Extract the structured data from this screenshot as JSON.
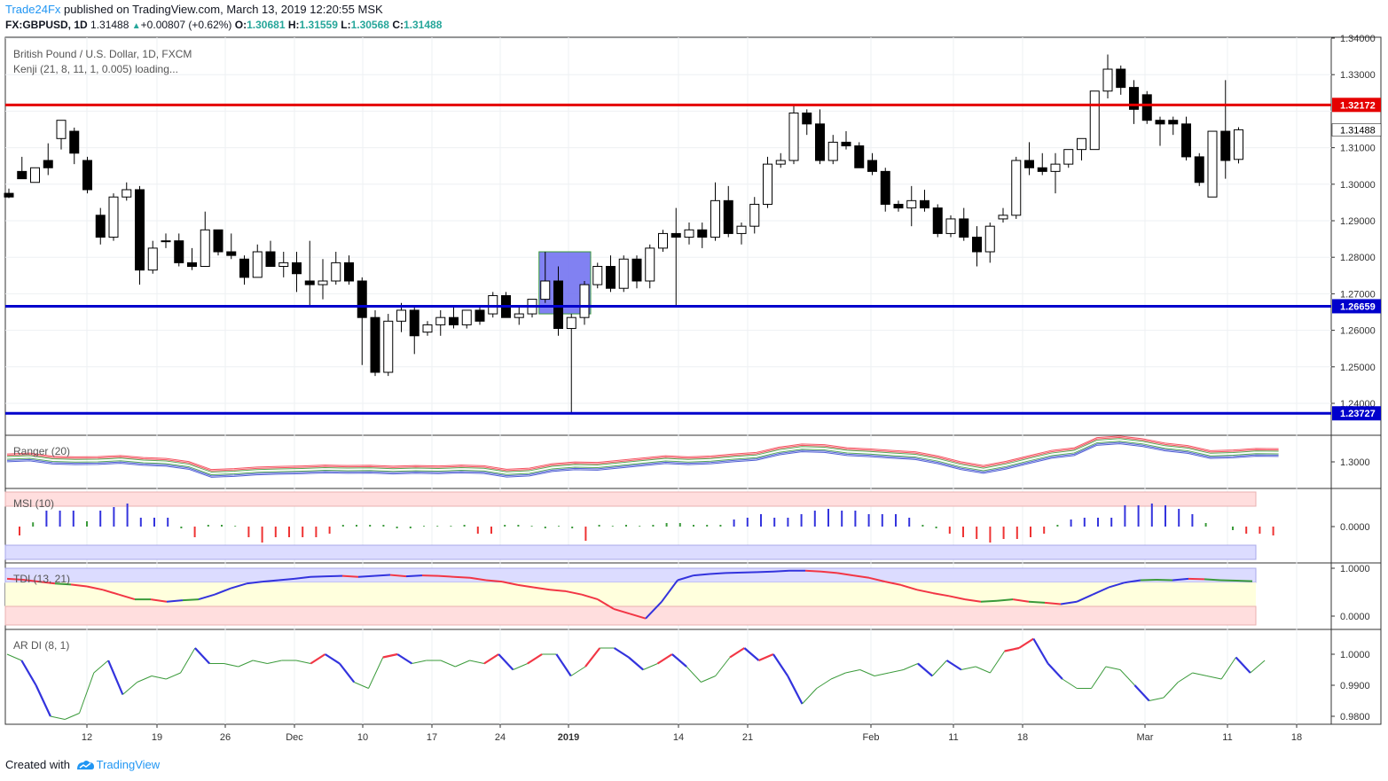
{
  "header": {
    "brand": "Trade24Fx",
    "published": " published on TradingView.com, March 13, 2019 12:20:55 MSK",
    "symbol": "FX:GBPUSD, 1D",
    "last": "1.31488",
    "change": "+0.00807 (+0.62%)",
    "o_label": "O:",
    "o_value": "1.30681",
    "h_label": "H:",
    "h_value": "1.31559",
    "l_label": "L:",
    "l_value": "1.30568",
    "c_label": "C:",
    "c_value": "1.31488"
  },
  "footer": {
    "created": "Created with",
    "brand": "TradingView"
  },
  "colors": {
    "up_fill": "#ffffff",
    "down_fill": "#000000",
    "red_line": "#e50000",
    "blue_line": "#0000cc",
    "ranger_red": "#f23645",
    "ranger_blue": "#3344cc",
    "msi_up": "#3333dd",
    "msi_dn": "#ee3333",
    "green": "#3a9a3a",
    "zone_pink": "#ffdede",
    "zone_blue": "#dcdcff",
    "zone_yellow": "#ffffdd"
  },
  "chart_data": [
    {
      "type": "candlestick",
      "title": "British Pound / U.S. Dollar, 1D, FXCM",
      "subtitle": "Kenji (21, 8, 11, 1, 0.005) loading...",
      "ylim": [
        1.2345,
        1.3425
      ],
      "yticks": [
        "1.34000",
        "1.33000",
        "1.32172",
        "1.31488",
        "1.31000",
        "1.30000",
        "1.29000",
        "1.28000",
        "1.27000",
        "1.26659",
        "1.26000",
        "1.25000",
        "1.24000",
        "1.23727"
      ],
      "xtick_labels": [
        "12",
        "19",
        "26",
        "Dec",
        "10",
        "17",
        "24",
        "2019",
        "14",
        "21",
        "Feb",
        "11",
        "18",
        "Mar",
        "11",
        "18"
      ],
      "horizontal_lines": [
        {
          "value": 1.32172,
          "label": "1.32172",
          "color": "red"
        },
        {
          "value": 1.26659,
          "label": "1.26659",
          "color": "blue"
        },
        {
          "value": 1.23727,
          "label": "1.23727",
          "color": "blue"
        }
      ],
      "highlight_box": {
        "from_index": 41,
        "to_index": 44,
        "top": 1.2815,
        "bottom": 1.2645
      },
      "candles": [
        [
          1.2975,
          1.2988,
          1.2965,
          1.2962
        ],
        [
          1.3035,
          1.3075,
          1.3015,
          1.3015
        ],
        [
          1.3005,
          1.3035,
          1.3045,
          1.3055
        ],
        [
          1.3065,
          1.3112,
          1.3045,
          1.3025
        ],
        [
          1.3125,
          1.3155,
          1.3175,
          1.3095
        ],
        [
          1.3145,
          1.3155,
          1.3085,
          1.3055
        ],
        [
          1.3065,
          1.3075,
          1.2985,
          1.2975
        ],
        [
          1.2915,
          1.2935,
          1.2855,
          1.2835
        ],
        [
          1.2855,
          1.2975,
          1.2965,
          1.2845
        ],
        [
          1.2965,
          1.3005,
          1.2985,
          1.2955
        ],
        [
          1.2985,
          1.2995,
          1.2765,
          1.2725
        ],
        [
          1.2765,
          1.2845,
          1.2825,
          1.2755
        ],
        [
          1.2845,
          1.2865,
          1.2845,
          1.2825
        ],
        [
          1.2845,
          1.2865,
          1.2785,
          1.2775
        ],
        [
          1.2785,
          1.2825,
          1.2775,
          1.2765
        ],
        [
          1.2775,
          1.2925,
          1.2875,
          1.2775
        ],
        [
          1.2875,
          1.2875,
          1.2815,
          1.2805
        ],
        [
          1.2815,
          1.2865,
          1.2805,
          1.2795
        ],
        [
          1.2795,
          1.2805,
          1.2745,
          1.2725
        ],
        [
          1.2745,
          1.2835,
          1.2815,
          1.2745
        ],
        [
          1.2815,
          1.2845,
          1.2775,
          1.2775
        ],
        [
          1.2775,
          1.2815,
          1.2785,
          1.2745
        ],
        [
          1.2785,
          1.2815,
          1.2755,
          1.2705
        ],
        [
          1.2735,
          1.2845,
          1.2725,
          1.2665
        ],
        [
          1.2725,
          1.2795,
          1.2735,
          1.2685
        ],
        [
          1.2735,
          1.2815,
          1.2785,
          1.2725
        ],
        [
          1.2785,
          1.2805,
          1.2735,
          1.2725
        ],
        [
          1.2735,
          1.2745,
          1.2635,
          1.2505
        ],
        [
          1.2635,
          1.2655,
          1.2485,
          1.2475
        ],
        [
          1.2485,
          1.2645,
          1.2625,
          1.2475
        ],
        [
          1.2625,
          1.2675,
          1.2655,
          1.2595
        ],
        [
          1.2655,
          1.2665,
          1.2585,
          1.2535
        ],
        [
          1.2595,
          1.2625,
          1.2615,
          1.2585
        ],
        [
          1.2615,
          1.2655,
          1.2635,
          1.2585
        ],
        [
          1.2635,
          1.2665,
          1.2615,
          1.2605
        ],
        [
          1.2615,
          1.2655,
          1.2655,
          1.2605
        ],
        [
          1.2655,
          1.2665,
          1.2625,
          1.2615
        ],
        [
          1.2645,
          1.2705,
          1.2695,
          1.2635
        ],
        [
          1.2695,
          1.2705,
          1.2635,
          1.2635
        ],
        [
          1.2635,
          1.2665,
          1.2645,
          1.2615
        ],
        [
          1.2645,
          1.2675,
          1.2685,
          1.2635
        ],
        [
          1.2685,
          1.2815,
          1.2735,
          1.2675
        ],
        [
          1.2735,
          1.2775,
          1.2605,
          1.2585
        ],
        [
          1.2605,
          1.2645,
          1.2635,
          1.2375
        ],
        [
          1.2635,
          1.2735,
          1.2725,
          1.2615
        ],
        [
          1.2725,
          1.2785,
          1.2775,
          1.2715
        ],
        [
          1.2775,
          1.2805,
          1.2715,
          1.2705
        ],
        [
          1.2715,
          1.2805,
          1.2795,
          1.2705
        ],
        [
          1.2795,
          1.2805,
          1.2735,
          1.2715
        ],
        [
          1.2735,
          1.2835,
          1.2825,
          1.2715
        ],
        [
          1.2825,
          1.2875,
          1.2865,
          1.2815
        ],
        [
          1.2865,
          1.2935,
          1.2855,
          1.2665
        ],
        [
          1.2855,
          1.2895,
          1.2875,
          1.2835
        ],
        [
          1.2875,
          1.2895,
          1.2855,
          1.2825
        ],
        [
          1.2855,
          1.3005,
          1.2955,
          1.2845
        ],
        [
          1.2955,
          1.2995,
          1.2865,
          1.2855
        ],
        [
          1.2865,
          1.2895,
          1.2885,
          1.2835
        ],
        [
          1.2885,
          1.2965,
          1.2945,
          1.2865
        ],
        [
          1.2945,
          1.3075,
          1.3055,
          1.2935
        ],
        [
          1.3055,
          1.3085,
          1.3065,
          1.3045
        ],
        [
          1.3065,
          1.3215,
          1.3195,
          1.3055
        ],
        [
          1.3195,
          1.3205,
          1.3165,
          1.3135
        ],
        [
          1.3165,
          1.3205,
          1.3065,
          1.3055
        ],
        [
          1.3065,
          1.3135,
          1.3115,
          1.3055
        ],
        [
          1.3115,
          1.3145,
          1.3105,
          1.3095
        ],
        [
          1.3105,
          1.3115,
          1.3045,
          1.3055
        ],
        [
          1.3065,
          1.3085,
          1.3035,
          1.3025
        ],
        [
          1.3035,
          1.3045,
          1.2945,
          1.2925
        ],
        [
          1.2945,
          1.2955,
          1.2935,
          1.2925
        ],
        [
          1.2935,
          1.2995,
          1.2955,
          1.2885
        ],
        [
          1.2955,
          1.2985,
          1.2935,
          1.2925
        ],
        [
          1.2935,
          1.2945,
          1.2865,
          1.2855
        ],
        [
          1.2865,
          1.2915,
          1.2905,
          1.2855
        ],
        [
          1.2905,
          1.2935,
          1.2855,
          1.2845
        ],
        [
          1.2855,
          1.2885,
          1.2815,
          1.2775
        ],
        [
          1.2815,
          1.2895,
          1.2885,
          1.2785
        ],
        [
          1.2905,
          1.2935,
          1.2915,
          1.2895
        ],
        [
          1.2915,
          1.3075,
          1.3065,
          1.2905
        ],
        [
          1.3065,
          1.3115,
          1.3045,
          1.3025
        ],
        [
          1.3045,
          1.3085,
          1.3035,
          1.3025
        ],
        [
          1.3035,
          1.3085,
          1.3055,
          1.2975
        ],
        [
          1.3055,
          1.3095,
          1.3095,
          1.3045
        ],
        [
          1.3095,
          1.3125,
          1.3125,
          1.3065
        ],
        [
          1.3095,
          1.3255,
          1.3255,
          1.3095
        ],
        [
          1.3255,
          1.3355,
          1.3315,
          1.3235
        ],
        [
          1.3315,
          1.3325,
          1.3265,
          1.3245
        ],
        [
          1.3265,
          1.3285,
          1.3205,
          1.3165
        ],
        [
          1.3245,
          1.3255,
          1.3175,
          1.3165
        ],
        [
          1.3175,
          1.3185,
          1.3165,
          1.3105
        ],
        [
          1.3175,
          1.3185,
          1.3165,
          1.3135
        ],
        [
          1.3165,
          1.3185,
          1.3075,
          1.3065
        ],
        [
          1.3075,
          1.3085,
          1.3005,
          1.2995
        ],
        [
          1.2965,
          1.3145,
          1.3145,
          1.2965
        ],
        [
          1.3145,
          1.3285,
          1.3065,
          1.3015
        ],
        [
          1.3068,
          1.3156,
          1.3149,
          1.3057
        ]
      ]
    },
    {
      "type": "line",
      "title": "Ranger (20)",
      "ylim": [
        1.288,
        1.312
      ],
      "yticks": [
        "1.3000"
      ],
      "mid": [
        1.3018,
        1.3022,
        1.3008,
        1.3005,
        1.3006,
        1.3011,
        1.3002,
        1.2998,
        1.2984,
        1.2948,
        1.2952,
        1.2959,
        1.2962,
        1.2964,
        1.2968,
        1.2966,
        1.2967,
        1.2963,
        1.2966,
        1.2964,
        1.2968,
        1.2965,
        1.2949,
        1.2954,
        1.2974,
        1.2982,
        1.298,
        1.299,
        1.3,
        1.301,
        1.3005,
        1.3009,
        1.3018,
        1.3025,
        1.3049,
        1.3063,
        1.306,
        1.3046,
        1.3041,
        1.3034,
        1.3028,
        1.3009,
        1.2983,
        1.2966,
        1.2985,
        1.301,
        1.3034,
        1.3046,
        1.3092,
        1.3099,
        1.3087,
        1.3067,
        1.3056,
        1.3033,
        1.3036,
        1.3043,
        1.3042
      ],
      "spread": 0.0021
    },
    {
      "type": "bar",
      "title": "MSI (10)",
      "ylim": [
        -1,
        1
      ],
      "yticks": [
        "0.0000"
      ],
      "values": [
        -0.25,
        0.12,
        0.45,
        0.45,
        0.45,
        0.15,
        0.45,
        0.55,
        0.65,
        0.25,
        0.25,
        0.25,
        -0.05,
        -0.3,
        0.05,
        0.05,
        0.02,
        -0.3,
        -0.45,
        -0.3,
        -0.3,
        -0.3,
        -0.3,
        -0.2,
        0.05,
        0.05,
        0.05,
        0.05,
        -0.05,
        -0.05,
        0.02,
        0.02,
        0.02,
        0.05,
        -0.2,
        -0.2,
        0.05,
        0.05,
        0.02,
        -0.05,
        0.02,
        -0.05,
        -0.4,
        0.05,
        0.02,
        0.05,
        0.02,
        0.05,
        0.1,
        0.1,
        0.05,
        0.05,
        0.05,
        0.2,
        0.25,
        0.35,
        0.25,
        0.25,
        0.35,
        0.45,
        0.5,
        0.45,
        0.45,
        0.35,
        0.35,
        0.35,
        0.25,
        0.05,
        -0.05,
        -0.2,
        -0.3,
        -0.35,
        -0.45,
        -0.35,
        -0.35,
        -0.3,
        -0.2,
        0.05,
        0.2,
        0.25,
        0.25,
        0.25,
        0.6,
        0.6,
        0.65,
        0.6,
        0.5,
        0.35,
        0.1,
        0,
        -0.1,
        -0.2,
        -0.2,
        -0.25
      ]
    },
    {
      "type": "line",
      "title": "TDI (13, 21)",
      "ylim": [
        -0.2,
        1.1
      ],
      "yticks": [
        "1.0000",
        "0.0000"
      ],
      "values": [
        0.78,
        0.76,
        0.72,
        0.68,
        0.66,
        0.62,
        0.55,
        0.45,
        0.35,
        0.35,
        0.3,
        0.33,
        0.35,
        0.45,
        0.58,
        0.68,
        0.72,
        0.75,
        0.78,
        0.82,
        0.83,
        0.84,
        0.82,
        0.84,
        0.86,
        0.83,
        0.85,
        0.84,
        0.82,
        0.8,
        0.75,
        0.72,
        0.65,
        0.6,
        0.55,
        0.52,
        0.45,
        0.35,
        0.15,
        0.05,
        -0.05,
        0.3,
        0.75,
        0.85,
        0.88,
        0.9,
        0.91,
        0.92,
        0.93,
        0.95,
        0.95,
        0.93,
        0.9,
        0.85,
        0.8,
        0.72,
        0.65,
        0.55,
        0.48,
        0.42,
        0.35,
        0.3,
        0.32,
        0.35,
        0.3,
        0.28,
        0.25,
        0.3,
        0.45,
        0.6,
        0.7,
        0.75,
        0.76,
        0.75,
        0.78,
        0.77,
        0.75,
        0.74,
        0.73
      ]
    },
    {
      "type": "line",
      "title": "AR DI (8, 1)",
      "ylim": [
        0.977,
        1.005
      ],
      "yticks": [
        "1.0000",
        "0.9900",
        "0.9800"
      ],
      "values": [
        1.0,
        0.998,
        0.99,
        0.98,
        0.979,
        0.981,
        0.994,
        0.998,
        0.987,
        0.991,
        0.993,
        0.992,
        0.994,
        1.002,
        0.997,
        0.997,
        0.996,
        0.998,
        0.997,
        0.998,
        0.998,
        0.997,
        1.0,
        0.997,
        0.991,
        0.989,
        0.999,
        1.0,
        0.997,
        0.998,
        0.998,
        0.996,
        0.998,
        0.997,
        1.0,
        0.995,
        0.997,
        1.0,
        1.0,
        0.993,
        0.996,
        1.002,
        1.002,
        0.999,
        0.995,
        0.997,
        1.0,
        0.996,
        0.991,
        0.993,
        0.999,
        1.002,
        0.998,
        1.0,
        0.993,
        0.984,
        0.989,
        0.992,
        0.994,
        0.995,
        0.993,
        0.994,
        0.995,
        0.997,
        0.993,
        0.998,
        0.995,
        0.996,
        0.994,
        1.001,
        1.002,
        1.005,
        0.997,
        0.992,
        0.989,
        0.989,
        0.996,
        0.995,
        0.99,
        0.985,
        0.986,
        0.991,
        0.994,
        0.993,
        0.992,
        0.999,
        0.994,
        0.998
      ]
    }
  ]
}
